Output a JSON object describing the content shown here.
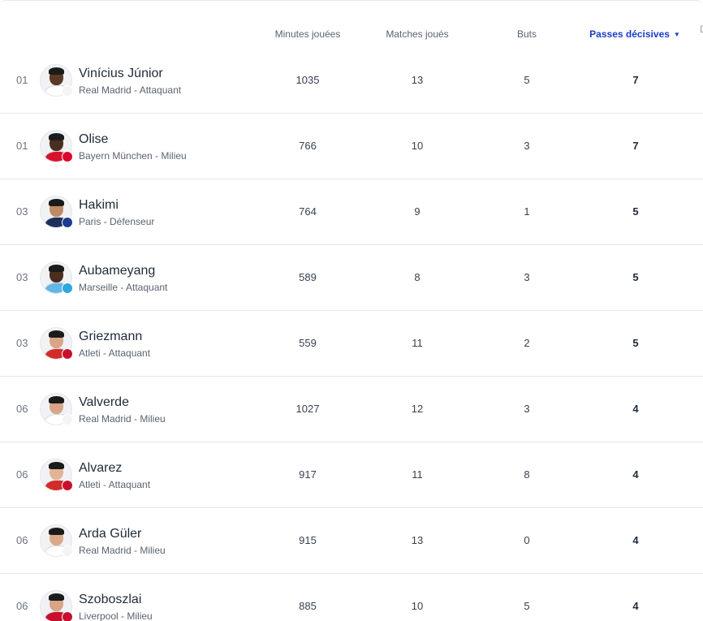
{
  "table": {
    "columns": {
      "minutes": "Minutes jouées",
      "matches": "Matches joués",
      "goals": "Buts",
      "assists": "Passes décisives",
      "assists_sort_indicator": "▼",
      "cut_off_column": "D"
    },
    "rows": [
      {
        "rank": "01",
        "name": "Vinícius Júnior",
        "club_position": "Real Madrid - Attaquant",
        "minutes": "1035",
        "matches": "13",
        "goals": "5",
        "assists": "7",
        "skin": "#5a3a26",
        "kit": "#ffffff",
        "badge": "#f4f4f4"
      },
      {
        "rank": "01",
        "name": "Olise",
        "club_position": "Bayern München - Milieu",
        "minutes": "766",
        "matches": "10",
        "goals": "3",
        "assists": "7",
        "skin": "#4a2e20",
        "kit": "#d8122a",
        "badge": "#dc052d"
      },
      {
        "rank": "03",
        "name": "Hakimi",
        "club_position": "Paris - Défenseur",
        "minutes": "764",
        "matches": "9",
        "goals": "1",
        "assists": "5",
        "skin": "#c08a66",
        "kit": "#1c2f5a",
        "badge": "#1d3c8f"
      },
      {
        "rank": "03",
        "name": "Aubameyang",
        "club_position": "Marseille - Attaquant",
        "minutes": "589",
        "matches": "8",
        "goals": "3",
        "assists": "5",
        "skin": "#4a2e20",
        "kit": "#5fb8e6",
        "badge": "#2fa6de"
      },
      {
        "rank": "03",
        "name": "Griezmann",
        "club_position": "Atleti - Attaquant",
        "minutes": "559",
        "matches": "11",
        "goals": "2",
        "assists": "5",
        "skin": "#d9a586",
        "kit": "#d42a2a",
        "badge": "#c8102e"
      },
      {
        "rank": "06",
        "name": "Valverde",
        "club_position": "Real Madrid - Milieu",
        "minutes": "1027",
        "matches": "12",
        "goals": "3",
        "assists": "4",
        "skin": "#d9a586",
        "kit": "#ffffff",
        "badge": "#f4f4f4"
      },
      {
        "rank": "06",
        "name": "Alvarez",
        "club_position": "Atleti - Attaquant",
        "minutes": "917",
        "matches": "11",
        "goals": "8",
        "assists": "4",
        "skin": "#e2b394",
        "kit": "#d42a2a",
        "badge": "#c8102e"
      },
      {
        "rank": "06",
        "name": "Arda Güler",
        "club_position": "Real Madrid - Milieu",
        "minutes": "915",
        "matches": "13",
        "goals": "0",
        "assists": "4",
        "skin": "#dba98a",
        "kit": "#ffffff",
        "badge": "#f4f4f4"
      },
      {
        "rank": "06",
        "name": "Szoboszlai",
        "club_position": "Liverpool - Milieu",
        "minutes": "885",
        "matches": "10",
        "goals": "5",
        "assists": "4",
        "skin": "#d9a586",
        "kit": "#c8102e",
        "badge": "#c8102e"
      }
    ]
  },
  "colors": {
    "accent": "#1a3cc8",
    "divider": "#e4e6ea"
  }
}
